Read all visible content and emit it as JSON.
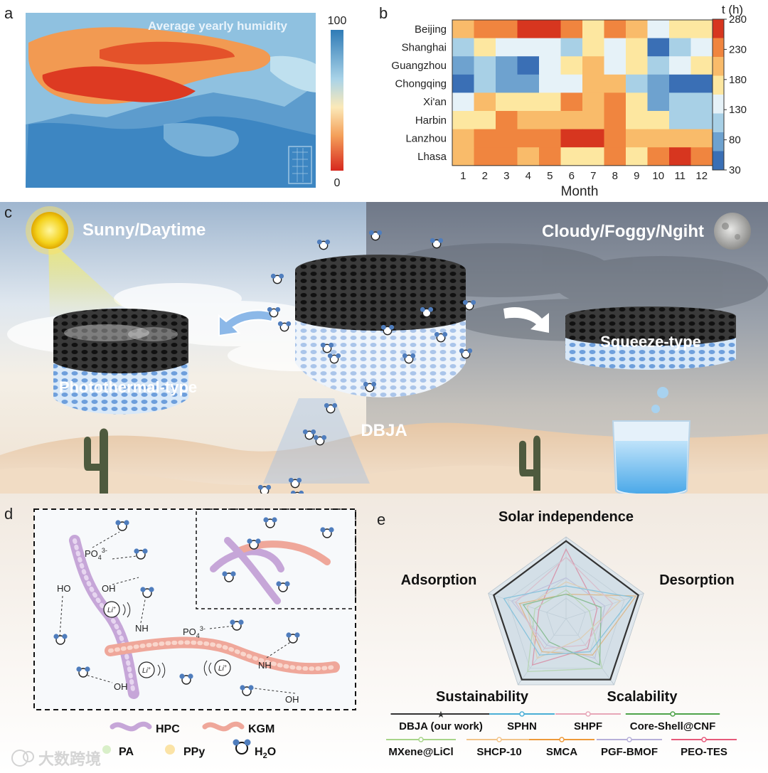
{
  "panel_a": {
    "letter": "a",
    "title": "Average yearly humidity",
    "colorbar_max": "100",
    "colorbar_min": "0"
  },
  "panel_b": {
    "letter": "b",
    "unit_label": "t (h)",
    "colorbar_ticks": [
      "280",
      "230",
      "180",
      "130",
      "80",
      "30"
    ]
  },
  "panel_c": {
    "letter": "c",
    "sunny_label": "Sunny/Daytime",
    "night_label": "Cloudy/Foggy/Ngiht",
    "left_label": "Photothermal-type",
    "right_label": "Squeeze-type",
    "center_label": "DBJA"
  },
  "panel_d": {
    "letter": "d",
    "po4_top": "PO",
    "po4_top_sub": "4",
    "po4_top_sup": "3-",
    "ho": "HO",
    "oh_mid": "OH",
    "li1": "Li",
    "li2": "Li",
    "li3": "Li",
    "li_sup": "+",
    "nh1": "NH",
    "nh2": "NH",
    "po4_mid": "PO",
    "po4_mid_sub": "4",
    "po4_mid_sup": "3-",
    "oh_bottom_left": "OH",
    "oh_bottom_right": "OH"
  },
  "panel_e": {
    "letter": "e",
    "axes": [
      "Solar independence",
      "Desorption",
      "Scalability",
      "Sustainability",
      "Adsorption"
    ]
  },
  "legend_d": {
    "hpc": "HPC",
    "kgm": "KGM",
    "pa": "PA",
    "ppy": "PPy",
    "h2o": "H",
    "h2o_sub": "2",
    "h2o_tail": "O"
  },
  "legend_e": [
    {
      "label": "DBJA (our work)",
      "color": "#333333"
    },
    {
      "label": "SPHN",
      "color": "#4aaed6"
    },
    {
      "label": "SHPF",
      "color": "#e8a7b8"
    },
    {
      "label": "Core-Shell@CNF",
      "color": "#4fa34a"
    },
    {
      "label": "MXene@LiCl",
      "color": "#a8d48a"
    },
    {
      "label": "SHCP-10",
      "color": "#f2c48a"
    },
    {
      "label": "SMCA",
      "color": "#ee9a3a"
    },
    {
      "label": "PGF-BMOF",
      "color": "#b7b0d9"
    },
    {
      "label": "PEO-TES",
      "color": "#e65a7a"
    }
  ],
  "watermark": "大数跨境",
  "chart_data": [
    {
      "type": "heatmap",
      "ylabels": [
        "Beijing",
        "Shanghai",
        "Guangzhou",
        "Chongqing",
        "Xi'an",
        "Harbin",
        "Lanzhou",
        "Lhasa"
      ],
      "xlabels": [
        "1",
        "2",
        "3",
        "4",
        "5",
        "6",
        "7",
        "8",
        "9",
        "10",
        "11",
        "12"
      ],
      "xlabel": "Month",
      "colorbar_label": "t (h)",
      "vmin": 30,
      "vmax": 280,
      "values": [
        [
          205,
          240,
          240,
          265,
          265,
          235,
          175,
          230,
          205,
          145,
          175,
          175
        ],
        [
          110,
          175,
          145,
          145,
          145,
          110,
          175,
          140,
          175,
          55,
          110,
          145
        ],
        [
          85,
          110,
          85,
          45,
          145,
          175,
          205,
          145,
          175,
          110,
          145,
          175
        ],
        [
          45,
          110,
          85,
          85,
          145,
          145,
          205,
          205,
          110,
          85,
          55,
          55
        ],
        [
          145,
          205,
          175,
          175,
          175,
          235,
          205,
          235,
          175,
          85,
          110,
          110
        ],
        [
          175,
          175,
          235,
          205,
          205,
          205,
          205,
          235,
          175,
          175,
          110,
          110
        ],
        [
          205,
          235,
          235,
          235,
          235,
          265,
          265,
          235,
          205,
          205,
          205,
          205
        ],
        [
          205,
          235,
          235,
          205,
          235,
          175,
          175,
          235,
          175,
          235,
          265,
          235
        ]
      ]
    },
    {
      "type": "radar",
      "axes": [
        "Solar independence",
        "Desorption",
        "Scalability",
        "Sustainability",
        "Adsorption"
      ],
      "range": [
        0,
        1
      ],
      "series": [
        {
          "name": "DBJA (our work)",
          "values": [
            0.95,
            0.93,
            0.92,
            0.92,
            0.93
          ]
        },
        {
          "name": "SPHN",
          "values": [
            0.4,
            0.85,
            0.5,
            0.55,
            0.8
          ]
        },
        {
          "name": "SHPF",
          "values": [
            0.75,
            0.6,
            0.4,
            0.45,
            0.65
          ]
        },
        {
          "name": "Core-Shell@CNF",
          "values": [
            0.3,
            0.45,
            0.7,
            0.35,
            0.55
          ]
        },
        {
          "name": "MXene@LiCl",
          "values": [
            0.35,
            0.3,
            0.75,
            0.8,
            0.4
          ]
        },
        {
          "name": "SHCP-10",
          "values": [
            0.45,
            0.7,
            0.3,
            0.6,
            0.5
          ]
        },
        {
          "name": "SMCA",
          "values": [
            0.3,
            0.9,
            0.55,
            0.5,
            0.6
          ]
        },
        {
          "name": "PGF-BMOF",
          "values": [
            0.5,
            0.5,
            0.6,
            0.4,
            0.7
          ]
        },
        {
          "name": "PEO-TES",
          "values": [
            0.85,
            0.4,
            0.45,
            0.7,
            0.35
          ]
        }
      ]
    }
  ]
}
